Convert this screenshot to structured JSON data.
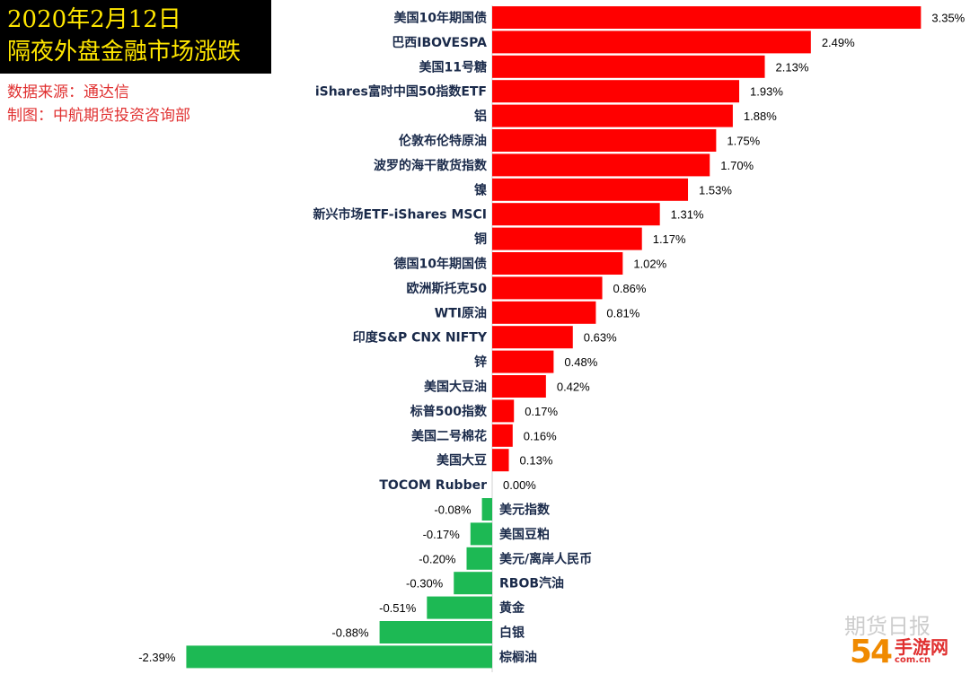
{
  "header": {
    "title_line1": "2020年2月12日",
    "title_line2": "隔夜外盘金融市场涨跌",
    "source": "数据来源：通达信",
    "maker": "制图：中航期货投资咨询部"
  },
  "watermark": "期货日报",
  "site_logo": {
    "number": "54",
    "mark": "手游网",
    "domain": "com.cn"
  },
  "colors": {
    "positive": "#ff0000",
    "negative": "#1db954",
    "label": "#1a2a4a"
  },
  "chart_data": {
    "type": "bar",
    "orientation": "horizontal",
    "categories": [
      "美国10年期国债",
      "巴西IBOVESPA",
      "美国11号糖",
      "iShares富时中国50指数ETF",
      "铝",
      "伦敦布伦特原油",
      "波罗的海干散货指数",
      "镍",
      "新兴市场ETF-iShares MSCI",
      "铜",
      "德国10年期国债",
      "欧洲斯托克50",
      "WTI原油",
      "印度S&P CNX NIFTY",
      "锌",
      "美国大豆油",
      "标普500指数",
      "美国二号棉花",
      "美国大豆",
      "TOCOM Rubber",
      "美元指数",
      "美国豆粕",
      "美元/离岸人民币",
      "RBOB汽油",
      "黄金",
      "白银",
      "棕榈油"
    ],
    "values": [
      3.35,
      2.49,
      2.13,
      1.93,
      1.88,
      1.75,
      1.7,
      1.53,
      1.31,
      1.17,
      1.02,
      0.86,
      0.81,
      0.63,
      0.48,
      0.42,
      0.17,
      0.16,
      0.13,
      0.0,
      -0.08,
      -0.17,
      -0.2,
      -0.3,
      -0.51,
      -0.88,
      -2.39
    ],
    "value_labels": [
      "3.35%",
      "2.49%",
      "2.13%",
      "1.93%",
      "1.88%",
      "1.75%",
      "1.70%",
      "1.53%",
      "1.31%",
      "1.17%",
      "1.02%",
      "0.86%",
      "0.81%",
      "0.63%",
      "0.48%",
      "0.42%",
      "0.17%",
      "0.16%",
      "0.13%",
      "0.00%",
      "-0.08%",
      "-0.17%",
      "-0.20%",
      "-0.30%",
      "-0.51%",
      "-0.88%",
      "-2.39%"
    ],
    "unit": "%",
    "grid": false,
    "legend": "none"
  }
}
